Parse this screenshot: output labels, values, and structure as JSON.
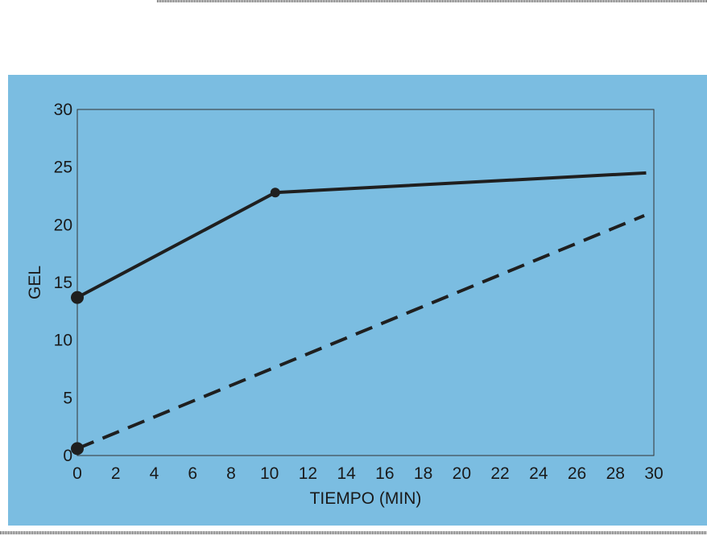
{
  "colors": {
    "panel_background": "#7bbde1",
    "line": "#1f1f1f",
    "frame": "#333333"
  },
  "chart_data": {
    "type": "line",
    "xlabel": "TIEMPO (MIN)",
    "ylabel": "GEL",
    "xlim": [
      0,
      30
    ],
    "ylim": [
      0,
      30
    ],
    "xticks": [
      0,
      2,
      4,
      6,
      8,
      10,
      12,
      14,
      16,
      18,
      20,
      22,
      24,
      26,
      28,
      30
    ],
    "yticks": [
      0,
      5,
      10,
      15,
      20,
      25,
      30
    ],
    "grid": false,
    "series": [
      {
        "style": "solid",
        "x": [
          0,
          10.3,
          29.6
        ],
        "y": [
          13.7,
          22.8,
          24.5
        ],
        "markers": [
          0,
          1
        ]
      },
      {
        "style": "dashed",
        "x": [
          0,
          29.5
        ],
        "y": [
          0.6,
          20.8
        ],
        "markers": [
          0
        ]
      }
    ]
  }
}
